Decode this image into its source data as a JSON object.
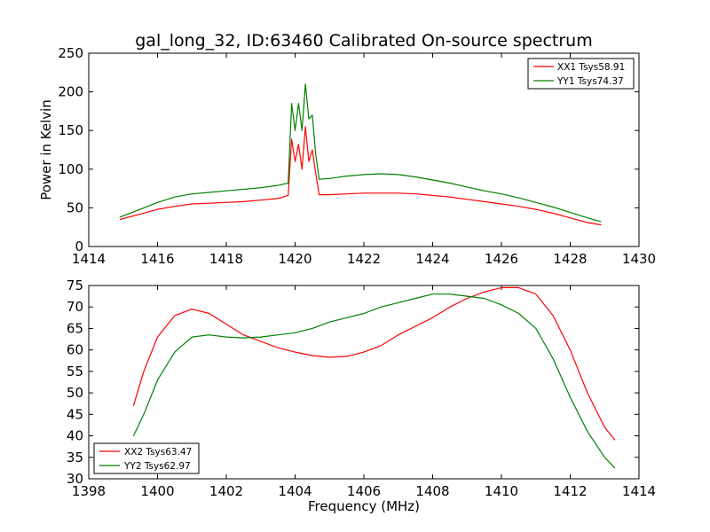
{
  "chart_data": [
    {
      "type": "line",
      "title": "gal_long_32, ID:63460 Calibrated On-source spectrum",
      "xlabel": "",
      "ylabel": "Power in Kelvin",
      "xlim": [
        1414,
        1430
      ],
      "ylim": [
        0,
        250
      ],
      "xticks": [
        "1414",
        "1416",
        "1418",
        "1420",
        "1422",
        "1424",
        "1426",
        "1428",
        "1430"
      ],
      "yticks": [
        "0",
        "50",
        "100",
        "150",
        "200",
        "250"
      ],
      "legend_position": "top-right",
      "series": [
        {
          "name": "XX1 Tsys58.91",
          "color": "#ff0000",
          "x": [
            1414.9,
            1415.5,
            1416.0,
            1416.5,
            1417.0,
            1417.5,
            1418.0,
            1418.5,
            1419.0,
            1419.5,
            1419.8,
            1419.9,
            1420.0,
            1420.1,
            1420.2,
            1420.3,
            1420.4,
            1420.5,
            1420.6,
            1420.7,
            1421.0,
            1421.5,
            1422.0,
            1422.5,
            1423.0,
            1423.5,
            1424.0,
            1424.5,
            1425.0,
            1425.5,
            1426.0,
            1426.5,
            1427.0,
            1427.5,
            1428.0,
            1428.5,
            1428.9
          ],
          "y": [
            35,
            42,
            48,
            52,
            55,
            56,
            57,
            58,
            60,
            62,
            66,
            139,
            110,
            132,
            100,
            155,
            110,
            125,
            95,
            67,
            67,
            68,
            69,
            69,
            69,
            68,
            66,
            64,
            61,
            58,
            55,
            52,
            48,
            43,
            37,
            31,
            28
          ]
        },
        {
          "name": "YY1 Tsys74.37",
          "color": "#008000",
          "x": [
            1414.9,
            1415.5,
            1416.0,
            1416.5,
            1417.0,
            1417.5,
            1418.0,
            1418.5,
            1419.0,
            1419.5,
            1419.8,
            1419.9,
            1420.0,
            1420.1,
            1420.2,
            1420.3,
            1420.4,
            1420.5,
            1420.6,
            1420.7,
            1421.0,
            1421.5,
            1422.0,
            1422.5,
            1423.0,
            1423.5,
            1424.0,
            1424.5,
            1425.0,
            1425.5,
            1426.0,
            1426.5,
            1427.0,
            1427.5,
            1428.0,
            1428.5,
            1428.9
          ],
          "y": [
            38,
            48,
            57,
            64,
            68,
            70,
            72,
            74,
            76,
            79,
            82,
            185,
            150,
            185,
            150,
            210,
            165,
            170,
            120,
            87,
            88,
            91,
            93,
            94,
            93,
            90,
            86,
            82,
            77,
            72,
            68,
            63,
            57,
            51,
            44,
            37,
            32
          ]
        }
      ]
    },
    {
      "type": "line",
      "title": "",
      "xlabel": "Frequency (MHz)",
      "ylabel": "",
      "xlim": [
        1398,
        1414
      ],
      "ylim": [
        30,
        75
      ],
      "xticks": [
        "1398",
        "1400",
        "1402",
        "1404",
        "1406",
        "1408",
        "1410",
        "1412",
        "1414"
      ],
      "yticks": [
        "30",
        "35",
        "40",
        "45",
        "50",
        "55",
        "60",
        "65",
        "70",
        "75"
      ],
      "legend_position": "bottom-left",
      "series": [
        {
          "name": "XX2 Tsys63.47",
          "color": "#ff0000",
          "x": [
            1399.3,
            1399.6,
            1400.0,
            1400.5,
            1401.0,
            1401.5,
            1402.0,
            1402.5,
            1403.0,
            1403.5,
            1404.0,
            1404.5,
            1405.0,
            1405.5,
            1406.0,
            1406.5,
            1407.0,
            1407.5,
            1408.0,
            1408.5,
            1409.0,
            1409.5,
            1410.0,
            1410.5,
            1411.0,
            1411.5,
            1412.0,
            1412.5,
            1413.0,
            1413.3
          ],
          "y": [
            47,
            55,
            63,
            68,
            69.5,
            68.5,
            66,
            63.5,
            62,
            60.5,
            59.5,
            58.7,
            58.3,
            58.5,
            59.5,
            61,
            63.5,
            65.5,
            67.5,
            70,
            72,
            73.5,
            74.5,
            74.5,
            73,
            68,
            60,
            50,
            42,
            39
          ]
        },
        {
          "name": "YY2 Tsys62.97",
          "color": "#008000",
          "x": [
            1399.3,
            1399.6,
            1400.0,
            1400.5,
            1401.0,
            1401.5,
            1402.0,
            1402.5,
            1403.0,
            1403.5,
            1404.0,
            1404.5,
            1405.0,
            1405.5,
            1406.0,
            1406.5,
            1407.0,
            1407.5,
            1408.0,
            1408.5,
            1409.0,
            1409.5,
            1410.0,
            1410.5,
            1411.0,
            1411.5,
            1412.0,
            1412.5,
            1413.0,
            1413.3
          ],
          "y": [
            40,
            45,
            53,
            59.5,
            63,
            63.5,
            63,
            62.8,
            63,
            63.5,
            64,
            65,
            66.5,
            67.5,
            68.5,
            70,
            71,
            72,
            73,
            73,
            72.5,
            72,
            70.5,
            68.5,
            65,
            58,
            49,
            41,
            35,
            32.5
          ]
        }
      ]
    }
  ]
}
